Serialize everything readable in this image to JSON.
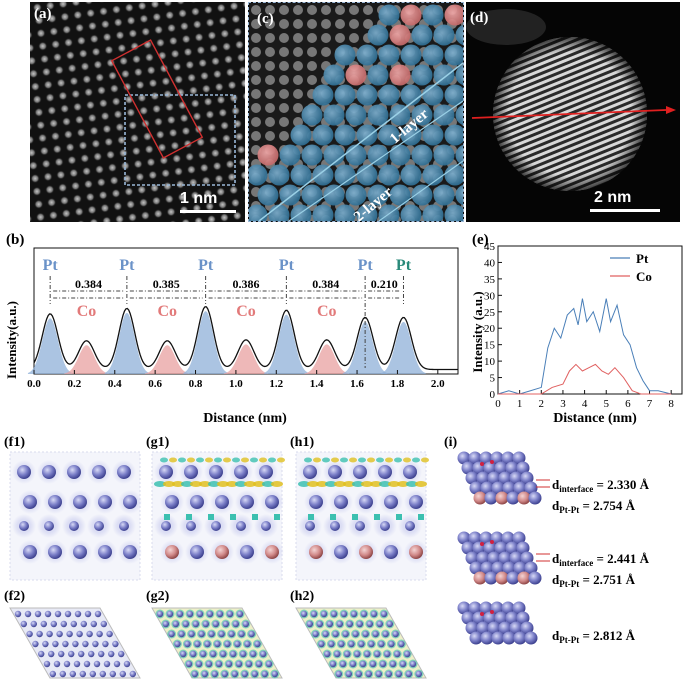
{
  "panels": {
    "a": {
      "label": "(a)",
      "scale": "1 nm"
    },
    "c": {
      "label": "(c)",
      "layer1": "1-layer",
      "layer2": "2-layer"
    },
    "d": {
      "label": "(d)",
      "scale": "2 nm"
    },
    "b": {
      "label": "(b)"
    },
    "e": {
      "label": "(e)"
    },
    "f1": {
      "label": "(f1)"
    },
    "f2": {
      "label": "(f2)"
    },
    "g1": {
      "label": "(g1)"
    },
    "g2": {
      "label": "(g2)"
    },
    "h1": {
      "label": "(h1)"
    },
    "h2": {
      "label": "(h2)"
    },
    "i": {
      "label": "(i)"
    }
  },
  "chart_data": [
    {
      "type": "line",
      "panel": "b",
      "xlabel": "Distance (nm)",
      "ylabel": "Intensity(a.u.)",
      "xlim": [
        0,
        2.1
      ],
      "xticks": [
        "0.0",
        "0.2",
        "0.4",
        "0.6",
        "0.8",
        "1.0",
        "1.2",
        "1.4",
        "1.6",
        "1.8",
        "2.0"
      ],
      "peaks": [
        {
          "x": 0.08,
          "h": 0.62,
          "element": "Pt"
        },
        {
          "x": 0.26,
          "h": 0.32,
          "element": "Co"
        },
        {
          "x": 0.46,
          "h": 0.68,
          "element": "Pt"
        },
        {
          "x": 0.66,
          "h": 0.32,
          "element": "Co"
        },
        {
          "x": 0.85,
          "h": 0.7,
          "element": "Pt"
        },
        {
          "x": 1.05,
          "h": 0.33,
          "element": "Co"
        },
        {
          "x": 1.25,
          "h": 0.66,
          "element": "Pt"
        },
        {
          "x": 1.45,
          "h": 0.33,
          "element": "Co"
        },
        {
          "x": 1.64,
          "h": 0.58,
          "element": "Pt"
        },
        {
          "x": 1.83,
          "h": 0.58,
          "element": "Pt"
        }
      ],
      "top_labels": [
        "Pt",
        "Pt",
        "Pt",
        "Pt",
        "Pt",
        "Pt"
      ],
      "co_labels": [
        "Co",
        "Co",
        "Co",
        "Co"
      ],
      "spacings": [
        "0.384",
        "0.385",
        "0.386",
        "0.384",
        "0.210"
      ]
    },
    {
      "type": "line",
      "panel": "e",
      "xlabel": "Distance (nm)",
      "ylabel": "Intensity (a.u.)",
      "xlim": [
        0,
        8.5
      ],
      "ylim": [
        0,
        45
      ],
      "xticks": [
        0,
        1,
        2,
        3,
        4,
        5,
        6,
        7,
        8
      ],
      "yticks": [
        0,
        5,
        10,
        15,
        20,
        25,
        30,
        35,
        40,
        45
      ],
      "series": [
        {
          "name": "Pt",
          "color": "#4a7fb8",
          "x": [
            0,
            0.5,
            1,
            1.5,
            2,
            2.3,
            2.6,
            2.9,
            3.2,
            3.5,
            3.7,
            3.9,
            4.1,
            4.4,
            4.7,
            5.0,
            5.2,
            5.5,
            5.8,
            6.1,
            6.4,
            6.7,
            7.0,
            7.4,
            8
          ],
          "y": [
            0,
            1,
            0,
            1,
            2,
            14,
            20,
            17,
            24,
            26,
            21,
            29,
            22,
            25,
            19,
            29,
            22,
            27,
            18,
            15,
            8,
            4,
            1,
            1,
            0
          ]
        },
        {
          "name": "Co",
          "color": "#e06060",
          "x": [
            0,
            0.5,
            1,
            1.5,
            2,
            2.5,
            3,
            3.3,
            3.6,
            3.9,
            4.2,
            4.5,
            4.8,
            5.1,
            5.4,
            5.8,
            6.2,
            6.6,
            7,
            8
          ],
          "y": [
            0,
            0,
            0,
            0,
            0,
            2,
            3,
            7,
            9,
            7,
            8,
            9,
            7,
            6,
            8,
            5,
            1,
            0,
            0,
            0
          ]
        }
      ]
    }
  ],
  "panel_i": {
    "rows": [
      {
        "d_interface": "2.330 Å",
        "d_ptpt": "2.754 Å"
      },
      {
        "d_interface": "2.441 Å",
        "d_ptpt": "2.751 Å"
      },
      {
        "d_ptpt": "2.812 Å"
      }
    ],
    "d_symbol": "d",
    "sub_interface": "interface",
    "sub_ptpt": "Pt-Pt",
    "equals": " = "
  },
  "colors": {
    "pt_blue": "#6a92c8",
    "co_red": "#e39a9a",
    "atom_purple": "#7b7fc8",
    "atom_pink": "#d58e8e"
  }
}
